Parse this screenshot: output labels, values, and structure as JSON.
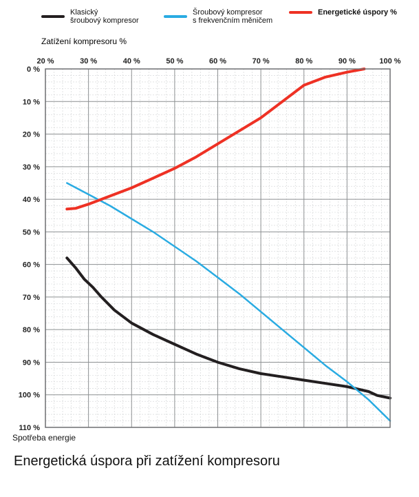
{
  "chart_data": {
    "type": "line",
    "title": "Energetická úspora při zatížení kompresoru",
    "xlabel": "Zatížení kompresoru %",
    "ylabel": "Spotřeba energie",
    "x_ticks": [
      "20 %",
      "30 %",
      "40 %",
      "50 %",
      "60 %",
      "70 %",
      "80 %",
      "90 %",
      "100 %"
    ],
    "y_ticks": [
      "0 %",
      "10 %",
      "20 %",
      "30 %",
      "40 %",
      "50 %",
      "60 %",
      "70 %",
      "80 %",
      "90 %",
      "100 %",
      "110 %"
    ],
    "xlim": [
      20,
      100
    ],
    "ylim": [
      0,
      110
    ],
    "grid": true,
    "legend_position": "top",
    "series": [
      {
        "name": "Klasický šroubový kompresor",
        "name_lines": [
          "Klasický",
          "šroubový kompresor"
        ],
        "color": "#231f20",
        "x": [
          25,
          27,
          29,
          31,
          33,
          36,
          40,
          45,
          50,
          55,
          60,
          65,
          70,
          75,
          80,
          85,
          90,
          95,
          97,
          100
        ],
        "y": [
          58,
          61,
          64.5,
          67,
          70,
          74,
          78,
          81.5,
          84.5,
          87.5,
          90,
          92,
          93.5,
          94.5,
          95.5,
          96.5,
          97.5,
          99,
          100.2,
          101
        ]
      },
      {
        "name": "Šroubový kompresor s frekvenčním měničem",
        "name_lines": [
          "Šroubový kompresor",
          "s frekvenčním měničem"
        ],
        "color": "#29abe2",
        "x": [
          25,
          30,
          35,
          40,
          45,
          50,
          55,
          60,
          65,
          70,
          75,
          80,
          85,
          90,
          95,
          100
        ],
        "y": [
          35,
          38.5,
          42,
          46,
          50,
          54.5,
          59,
          64,
          69,
          74.5,
          80,
          85.5,
          91,
          96,
          101.5,
          108
        ]
      },
      {
        "name": "Energetické úspory %",
        "name_lines": [
          "Energetické úspory %"
        ],
        "color": "#ee3124",
        "x": [
          25,
          27,
          30,
          33,
          36,
          40,
          45,
          50,
          55,
          60,
          65,
          70,
          75,
          80,
          85,
          90,
          94
        ],
        "y": [
          43,
          42.8,
          41.5,
          40,
          38.5,
          36.5,
          33.5,
          30.5,
          27,
          23,
          19,
          15,
          10,
          5,
          2.5,
          1,
          0
        ]
      }
    ]
  }
}
